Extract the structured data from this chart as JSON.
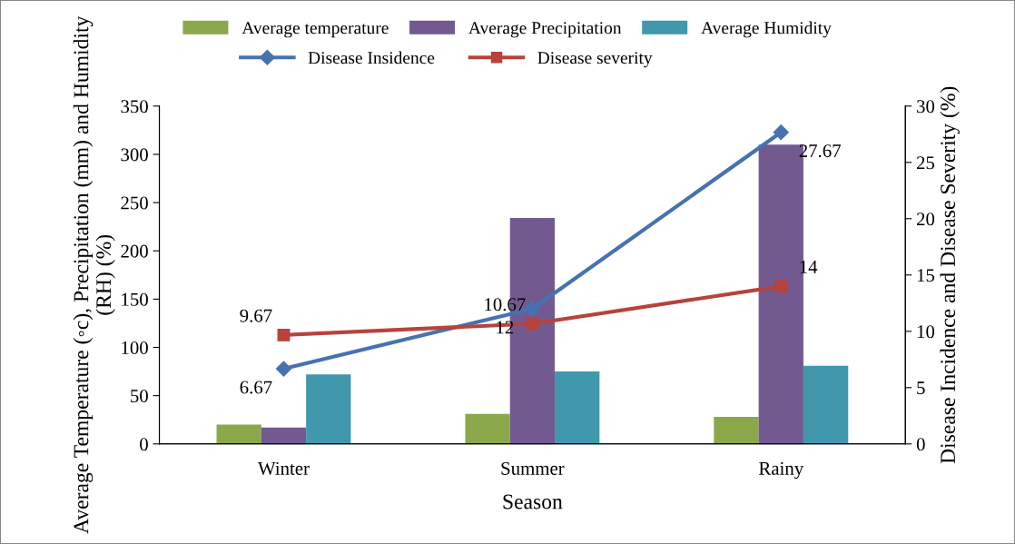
{
  "chart_data": {
    "type": "bar",
    "xlabel": "Season",
    "ylabel": "Average Temperature (◦c), Precipitation (mm) and Humidity (RH) (%)",
    "y2label": "Disease Incidence and Disease Severity (%)",
    "categories": [
      "Winter",
      "Summer",
      "Rainy"
    ],
    "series": [
      {
        "name": "Average temperature",
        "color": "#8aa84a",
        "values": [
          20,
          31,
          28
        ]
      },
      {
        "name": "Average Precipitation",
        "color": "#725a91",
        "values": [
          17,
          234,
          310
        ]
      },
      {
        "name": "Average Humidity",
        "color": "#4198ad",
        "values": [
          72,
          75,
          81
        ]
      },
      {
        "name": "Disease Insidence",
        "type": "line",
        "axis": "y2",
        "marker": "diamond",
        "color": "#4573b0",
        "values": [
          6.67,
          12,
          27.67
        ],
        "data_labels": true
      },
      {
        "name": "Disease severity",
        "type": "line",
        "axis": "y2",
        "marker": "square",
        "color": "#b8423c",
        "values": [
          9.67,
          10.67,
          14
        ],
        "data_labels": true
      }
    ],
    "ylim": [
      0,
      350
    ],
    "yticks": [
      0,
      50,
      100,
      150,
      200,
      250,
      300,
      350
    ],
    "y2lim": [
      0,
      30
    ],
    "y2ticks": [
      0,
      5,
      10,
      15,
      20,
      25,
      30
    ],
    "grid": false,
    "legend": "top"
  }
}
